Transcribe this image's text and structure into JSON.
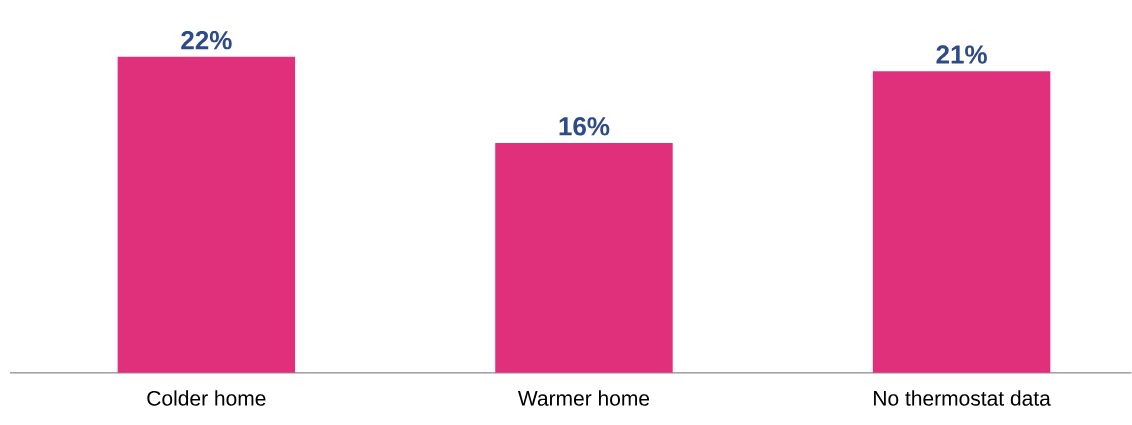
{
  "chart_data": {
    "type": "bar",
    "categories": [
      "Colder home",
      "Warmer home",
      "No thermostat data"
    ],
    "values": [
      22,
      16,
      21
    ],
    "value_labels": [
      "22%",
      "16%",
      "21%"
    ],
    "color": "#e0307c"
  }
}
